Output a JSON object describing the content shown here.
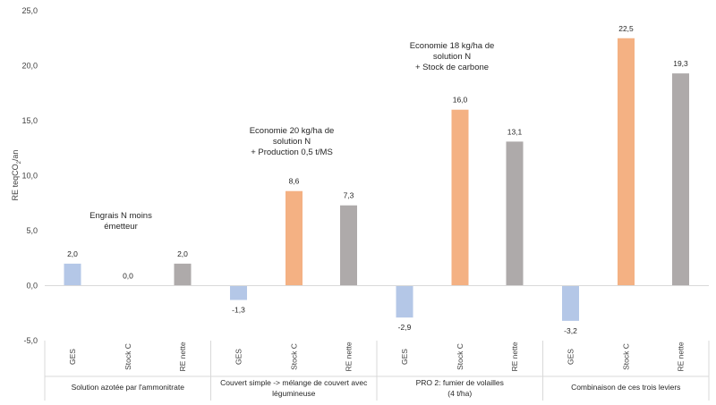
{
  "chart_data": {
    "type": "bar",
    "title": "",
    "ylabel_html": "RE teqCO<tspan baseline-shift=\"sub\" font-size=\"6\">2</tspan>/an",
    "ylabel_parts": [
      "RE teqCO",
      "2",
      "/an"
    ],
    "ylim": [
      -5,
      25
    ],
    "yticks": [
      "-5,0",
      "0,0",
      "5,0",
      "10,0",
      "15,0",
      "20,0",
      "25,0"
    ],
    "ytick_values": [
      -5,
      0,
      5,
      10,
      15,
      20,
      25
    ],
    "grid": false,
    "legend": "none",
    "groups": [
      {
        "name": "Solution azotée par l'ammonitrate",
        "name_lines": [
          "Solution azotée par l'ammonitrate"
        ],
        "annotation_lines": [
          "Engrais N moins",
          "émetteur"
        ],
        "bars": [
          {
            "category": "GES",
            "value": 2.0,
            "label": "2,0"
          },
          {
            "category": "Stock C",
            "value": 0.0,
            "label": "0,0"
          },
          {
            "category": "RE nette",
            "value": 2.0,
            "label": "2,0"
          }
        ]
      },
      {
        "name": "Couvert simple -> mélange de couvert avec légumineuse",
        "name_lines": [
          "Couvert simple -> mélange de couvert avec",
          "légumineuse"
        ],
        "annotation_lines": [
          "Economie 20 kg/ha de",
          "solution N",
          "+ Production 0,5 t/MS"
        ],
        "bars": [
          {
            "category": "GES",
            "value": -1.3,
            "label": "-1,3"
          },
          {
            "category": "Stock C",
            "value": 8.6,
            "label": "8,6"
          },
          {
            "category": "RE nette",
            "value": 7.3,
            "label": "7,3"
          }
        ]
      },
      {
        "name": "PRO 2: fumier de volailles (4 t/ha)",
        "name_lines": [
          "PRO 2: fumier de volailles",
          "(4 t/ha)"
        ],
        "annotation_lines": [
          "Economie 18 kg/ha de",
          "solution N",
          "+ Stock de carbone"
        ],
        "bars": [
          {
            "category": "GES",
            "value": -2.9,
            "label": "-2,9"
          },
          {
            "category": "Stock C",
            "value": 16.0,
            "label": "16,0"
          },
          {
            "category": "RE nette",
            "value": 13.1,
            "label": "13,1"
          }
        ]
      },
      {
        "name": "Combinaison de ces trois leviers",
        "name_lines": [
          "Combinaison de ces trois leviers"
        ],
        "annotation_lines": [],
        "bars": [
          {
            "category": "GES",
            "value": -3.2,
            "label": "-3,2"
          },
          {
            "category": "Stock C",
            "value": 22.5,
            "label": "22,5"
          },
          {
            "category": "RE nette",
            "value": 19.3,
            "label": "19,3"
          }
        ]
      }
    ],
    "series_colors": {
      "GES": "#b4c7e7",
      "Stock C": "#f4b183",
      "RE nette": "#aeaaaa"
    },
    "axis_color": "#d9d9d9"
  }
}
